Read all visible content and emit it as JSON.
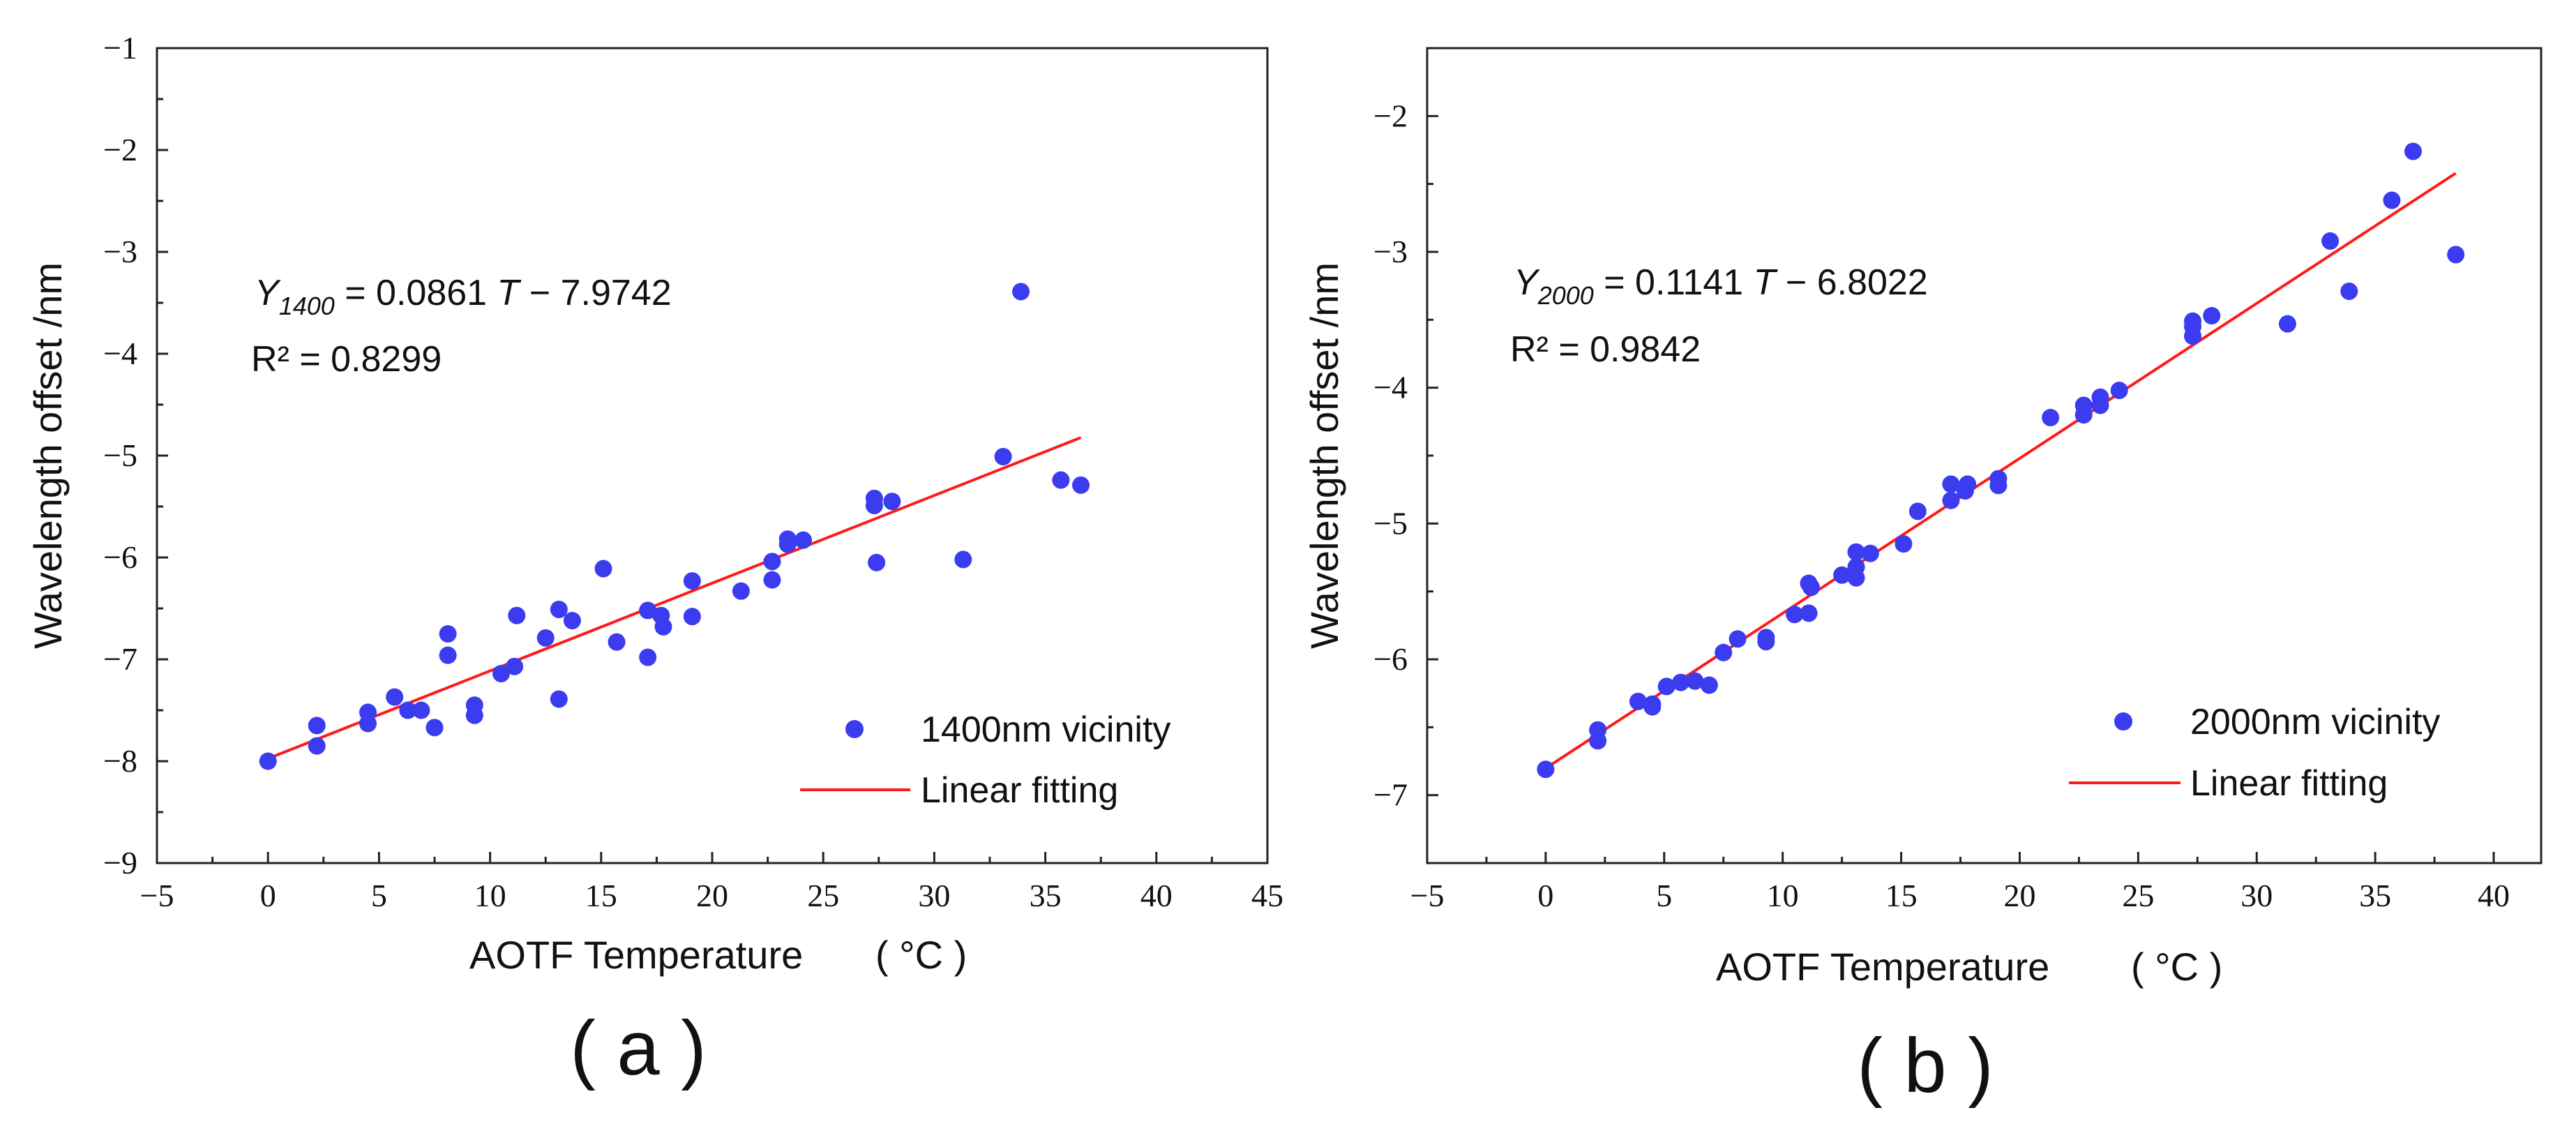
{
  "colors": {
    "points": "#3b3bf0",
    "fit_line": "#ff1a1a",
    "axis": "#222222",
    "text": "#111111"
  },
  "chart_data": [
    {
      "id": "a",
      "type": "scatter",
      "panel_label": "( a )",
      "xlabel": "AOTF Temperature",
      "xunit": "( °C )",
      "ylabel": "Wavelength offset /nm",
      "xlim": [
        -5,
        45
      ],
      "ylim": [
        -9,
        -1
      ],
      "xticks": [
        -5,
        0,
        5,
        10,
        15,
        20,
        25,
        30,
        35,
        40,
        45
      ],
      "yticks": [
        -9,
        -8,
        -7,
        -6,
        -5,
        -4,
        -3,
        -2,
        -1
      ],
      "xtick_labels": [
        "−5",
        "0",
        "5",
        "10",
        "15",
        "20",
        "25",
        "30",
        "35",
        "40",
        "45"
      ],
      "ytick_labels": [
        "−9",
        "−8",
        "−7",
        "−6",
        "−5",
        "−4",
        "−3",
        "−2",
        "−1"
      ],
      "equation": {
        "y_symbol": "Y",
        "y_sub": "1400",
        "text": " = 0.0861 ",
        "var": "T",
        "tail": " − 7.9742"
      },
      "r2": "R² = 0.8299",
      "legend": {
        "points": "1400nm vicinity",
        "line": "Linear fitting",
        "position": "bottom-right"
      },
      "fit": {
        "slope": 0.0861,
        "intercept": -7.9742,
        "x_range": [
          0,
          36.6
        ]
      },
      "series": [
        {
          "name": "1400nm vicinity",
          "x": [
            0,
            2.2,
            2.2,
            4.5,
            4.5,
            5.7,
            6.3,
            6.9,
            7.5,
            8.1,
            8.1,
            9.3,
            9.3,
            10.5,
            11.1,
            11.2,
            12.5,
            13.1,
            13.1,
            13.7,
            15.1,
            15.7,
            17.1,
            17.1,
            17.7,
            17.8,
            19.1,
            19.1,
            21.3,
            22.7,
            22.7,
            23.4,
            23.4,
            24.1,
            27.3,
            27.3,
            27.4,
            28.1,
            31.3,
            33.1,
            33.9,
            35.7,
            36.6
          ],
          "y": [
            -8.0,
            -7.65,
            -7.85,
            -7.52,
            -7.63,
            -7.37,
            -7.5,
            -7.5,
            -7.67,
            -6.75,
            -6.96,
            -7.45,
            -7.55,
            -7.14,
            -7.07,
            -6.57,
            -6.79,
            -6.51,
            -7.39,
            -6.62,
            -6.11,
            -6.83,
            -6.52,
            -6.98,
            -6.57,
            -6.68,
            -6.23,
            -6.58,
            -6.33,
            -6.04,
            -6.22,
            -5.82,
            -5.87,
            -5.83,
            -5.42,
            -5.49,
            -6.05,
            -5.45,
            -6.02,
            -5.01,
            -3.39,
            -5.24,
            -5.29
          ]
        }
      ]
    },
    {
      "id": "b",
      "type": "scatter",
      "panel_label": "( b )",
      "xlabel": "AOTF Temperature",
      "xunit": "( °C )",
      "ylabel": "Wavelength offset /nm",
      "xlim": [
        -5,
        42
      ],
      "ylim": [
        -7.5,
        -1.5
      ],
      "xticks": [
        -5,
        0,
        5,
        10,
        15,
        20,
        25,
        30,
        35,
        40
      ],
      "yticks": [
        -7,
        -6,
        -5,
        -4,
        -3,
        -2
      ],
      "xtick_labels": [
        "−5",
        "0",
        "5",
        "10",
        "15",
        "20",
        "25",
        "30",
        "35",
        "40"
      ],
      "ytick_labels": [
        "−7",
        "−6",
        "−5",
        "−4",
        "−3",
        "−2"
      ],
      "equation": {
        "y_symbol": "Y",
        "y_sub": "2000",
        "text": " = 0.1141 ",
        "var": "T",
        "tail": " − 6.8022"
      },
      "r2": "R² = 0.9842",
      "legend": {
        "points": "2000nm vicinity",
        "line": "Linear fitting",
        "position": "bottom-right"
      },
      "fit": {
        "slope": 0.1141,
        "intercept": -6.8022,
        "x_range": [
          0,
          38.4
        ]
      },
      "series": [
        {
          "name": "2000nm vicinity",
          "x": [
            0,
            2.2,
            2.2,
            3.9,
            4.5,
            4.5,
            5.1,
            5.7,
            6.3,
            6.9,
            7.5,
            8.1,
            9.3,
            9.3,
            10.5,
            11.1,
            11.1,
            11.2,
            12.5,
            13.1,
            13.1,
            13.1,
            13.7,
            15.1,
            15.7,
            17.1,
            17.1,
            17.7,
            17.8,
            19.1,
            19.1,
            21.3,
            22.7,
            22.7,
            23.4,
            23.4,
            24.2,
            27.3,
            27.3,
            27.3,
            28.1,
            31.3,
            33.1,
            33.9,
            35.7,
            36.6,
            38.4
          ],
          "y": [
            -6.81,
            -6.52,
            -6.6,
            -6.31,
            -6.33,
            -6.35,
            -6.2,
            -6.17,
            -6.16,
            -6.19,
            -5.95,
            -5.85,
            -5.84,
            -5.87,
            -5.67,
            -5.66,
            -5.44,
            -5.47,
            -5.38,
            -5.21,
            -5.32,
            -5.4,
            -5.22,
            -5.15,
            -4.91,
            -4.71,
            -4.83,
            -4.76,
            -4.71,
            -4.67,
            -4.72,
            -4.22,
            -4.13,
            -4.2,
            -4.07,
            -4.13,
            -4.02,
            -3.51,
            -3.55,
            -3.62,
            -3.47,
            -3.53,
            -2.92,
            -3.29,
            -2.62,
            -2.26,
            -3.02
          ]
        }
      ]
    }
  ]
}
